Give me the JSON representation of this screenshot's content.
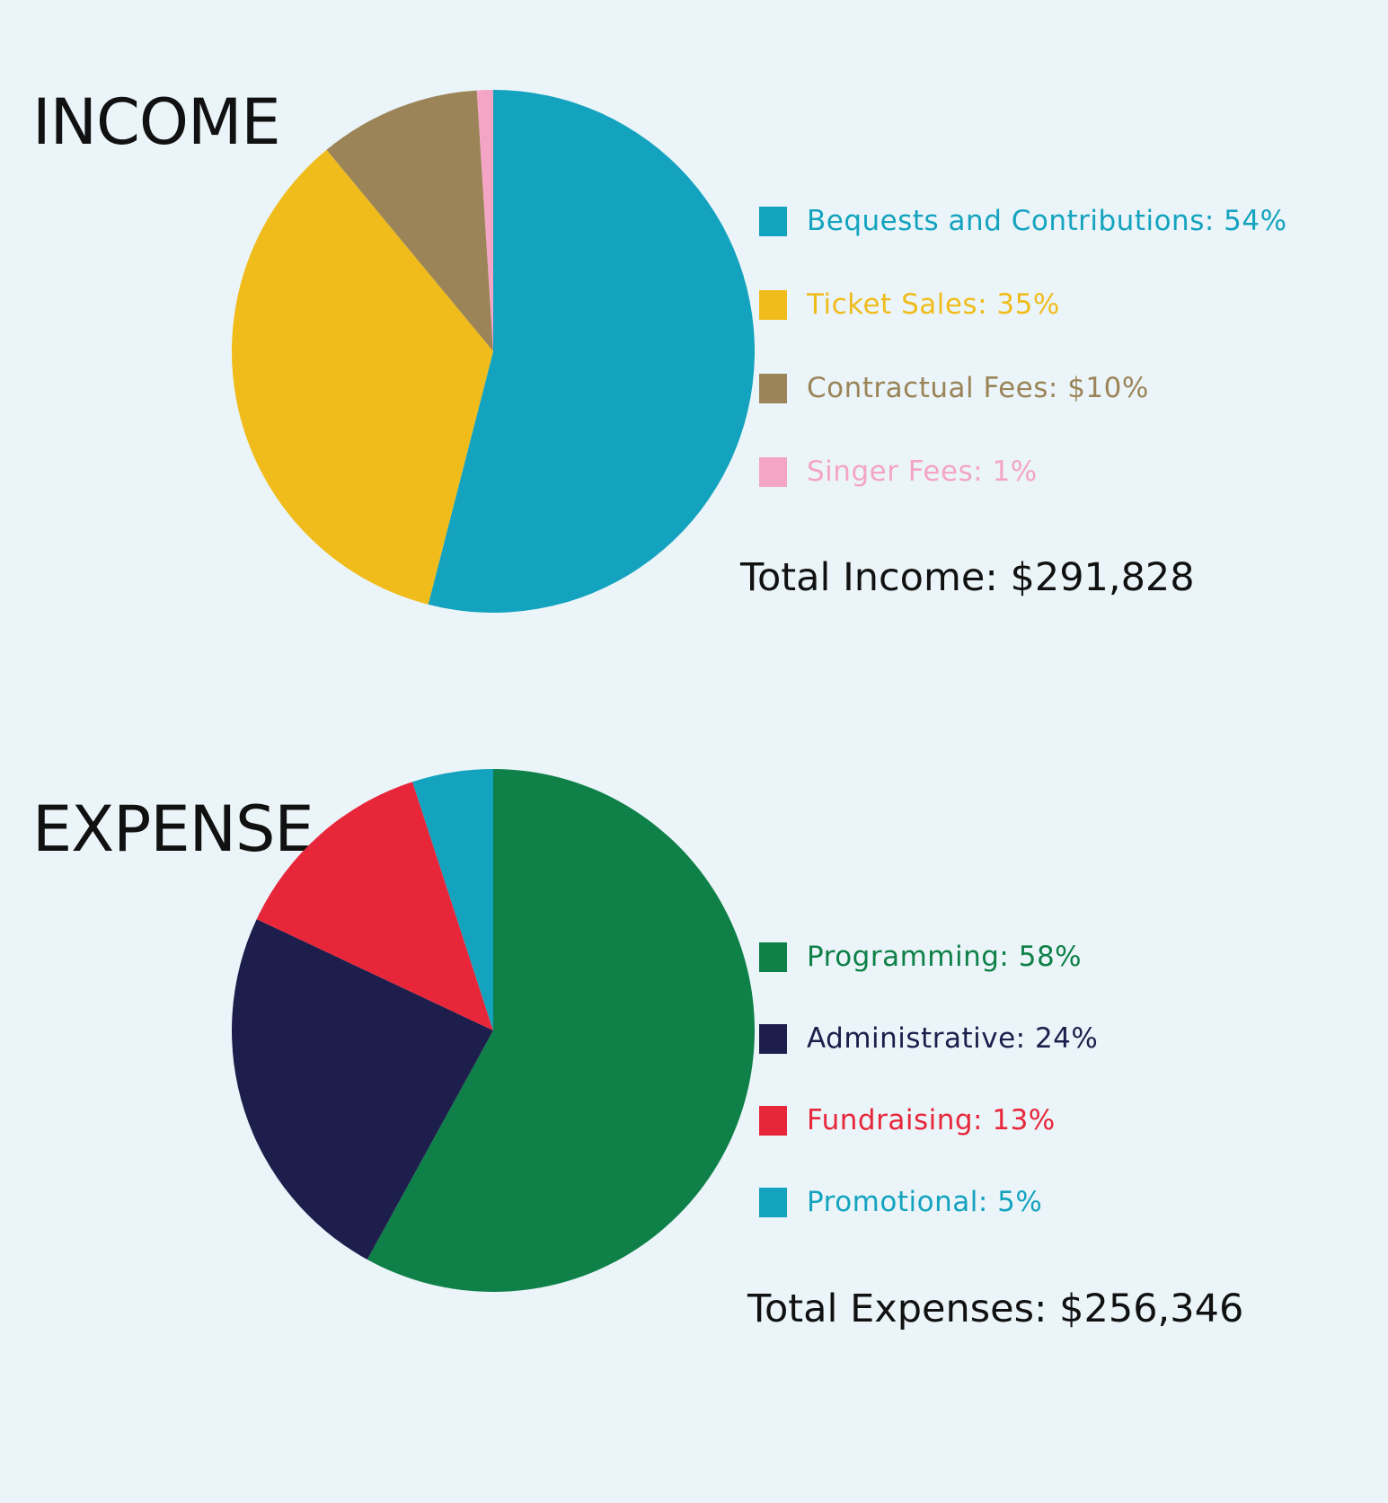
{
  "chart_data": [
    {
      "type": "pie",
      "title": "INCOME",
      "categories": [
        "Bequests and Contributions",
        "Ticket Sales",
        "Contractual Fees",
        "Singer Fees"
      ],
      "values": [
        54,
        35,
        10,
        1
      ],
      "colors": [
        "#14a3bf",
        "#f0bc1c",
        "#9b8458",
        "#f4a5c6"
      ],
      "legend": [
        {
          "label": "Bequests and Contributions: 54%",
          "color": "#14a3bf"
        },
        {
          "label": "Ticket Sales: 35%",
          "color": "#f0bc1c"
        },
        {
          "label": "Contractual Fees: $10%",
          "color": "#9b8458"
        },
        {
          "label": "Singer Fees: 1%",
          "color": "#f4a5c6"
        }
      ],
      "total_label": "Total Income: $291,828",
      "legend_position": "right"
    },
    {
      "type": "pie",
      "title": "EXPENSE",
      "categories": [
        "Programming",
        "Administrative",
        "Fundraising",
        "Promotional"
      ],
      "values": [
        58,
        24,
        13,
        5
      ],
      "colors": [
        "#0e8048",
        "#1d1e4b",
        "#e7263a",
        "#14a3bf"
      ],
      "legend": [
        {
          "label": "Programming: 58%",
          "color": "#0e8048"
        },
        {
          "label": "Administrative: 24%",
          "color": "#1d1e4b"
        },
        {
          "label": "Fundraising: 13%",
          "color": "#e7263a"
        },
        {
          "label": "Promotional: 5%",
          "color": "#14a3bf"
        }
      ],
      "total_label": "Total Expenses: $256,346",
      "legend_position": "right"
    }
  ],
  "colors": {
    "background": "#ebf5f9",
    "text": "#111111"
  }
}
